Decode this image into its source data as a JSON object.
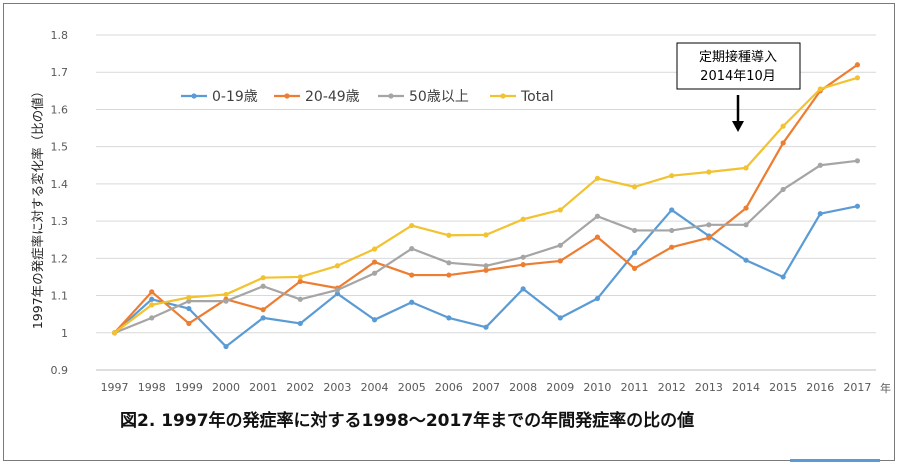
{
  "chart_data": {
    "type": "line",
    "ylabel": "1997年の発症率に対する変化率（比の値）",
    "x_unit": "年",
    "ylim": [
      0.9,
      1.8
    ],
    "yticks": [
      "0.9",
      "1",
      "1.1",
      "1.2",
      "1.3",
      "1.4",
      "1.5",
      "1.6",
      "1.7",
      "1.8"
    ],
    "categories": [
      "1997",
      "1998",
      "1999",
      "2000",
      "2001",
      "2002",
      "2003",
      "2004",
      "2005",
      "2006",
      "2007",
      "2008",
      "2009",
      "2010",
      "2011",
      "2012",
      "2013",
      "2014",
      "2015",
      "2016",
      "2017"
    ],
    "series": [
      {
        "name": "0-19歳",
        "color": "#5b9bd5",
        "values": [
          1.0,
          1.09,
          1.065,
          0.963,
          1.04,
          1.025,
          1.105,
          1.035,
          1.082,
          1.04,
          1.015,
          1.118,
          1.04,
          1.092,
          1.215,
          1.33,
          1.26,
          1.195,
          1.15,
          1.32,
          1.34
        ]
      },
      {
        "name": "20-49歳",
        "color": "#ed7d31",
        "values": [
          1.0,
          1.11,
          1.025,
          1.09,
          1.062,
          1.138,
          1.12,
          1.19,
          1.155,
          1.155,
          1.168,
          1.183,
          1.193,
          1.257,
          1.173,
          1.23,
          1.255,
          1.335,
          1.51,
          1.65,
          1.72
        ]
      },
      {
        "name": "50歳以上",
        "color": "#a5a5a5",
        "values": [
          1.0,
          1.04,
          1.085,
          1.085,
          1.125,
          1.09,
          1.115,
          1.16,
          1.226,
          1.188,
          1.18,
          1.203,
          1.235,
          1.313,
          1.275,
          1.275,
          1.29,
          1.29,
          1.385,
          1.45,
          1.462
        ]
      },
      {
        "name": "Total",
        "color": "#f2c230",
        "values": [
          1.0,
          1.075,
          1.095,
          1.103,
          1.148,
          1.15,
          1.18,
          1.225,
          1.288,
          1.262,
          1.263,
          1.305,
          1.33,
          1.415,
          1.392,
          1.422,
          1.432,
          1.443,
          1.555,
          1.655,
          1.685
        ]
      }
    ],
    "annotation": {
      "line1": "定期接種導入",
      "line2": "2014年10月"
    },
    "grid": true,
    "legend": "top-left"
  },
  "caption": "図2.  1997年の発症率に対する1998～2017年までの年間発症率の比の値"
}
